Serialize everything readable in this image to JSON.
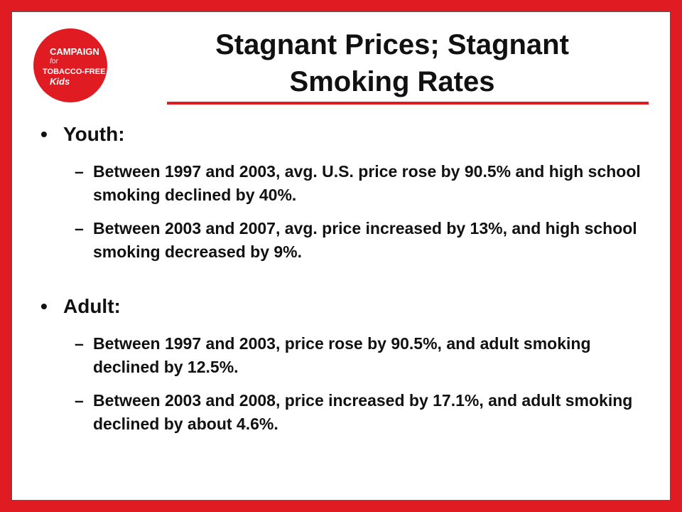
{
  "logo": {
    "lines": [
      "CAMPAIGN",
      "for",
      "TOBACCO-FREE",
      "Kids"
    ]
  },
  "title": {
    "line1": "Stagnant Prices; Stagnant",
    "line2": "Smoking Rates"
  },
  "sections": [
    {
      "heading": "Youth:",
      "items": [
        "Between 1997 and 2003, avg. U.S. price rose by 90.5% and high school smoking declined by 40%.",
        "Between 2003 and 2007, avg. price increased by 13%, and high school smoking decreased by 9%."
      ]
    },
    {
      "heading": "Adult:",
      "items": [
        "Between 1997 and 2003, price rose by 90.5%, and adult smoking declined by 12.5%.",
        "Between 2003 and 2008, price increased by 17.1%, and adult smoking declined by about 4.6%."
      ]
    }
  ]
}
